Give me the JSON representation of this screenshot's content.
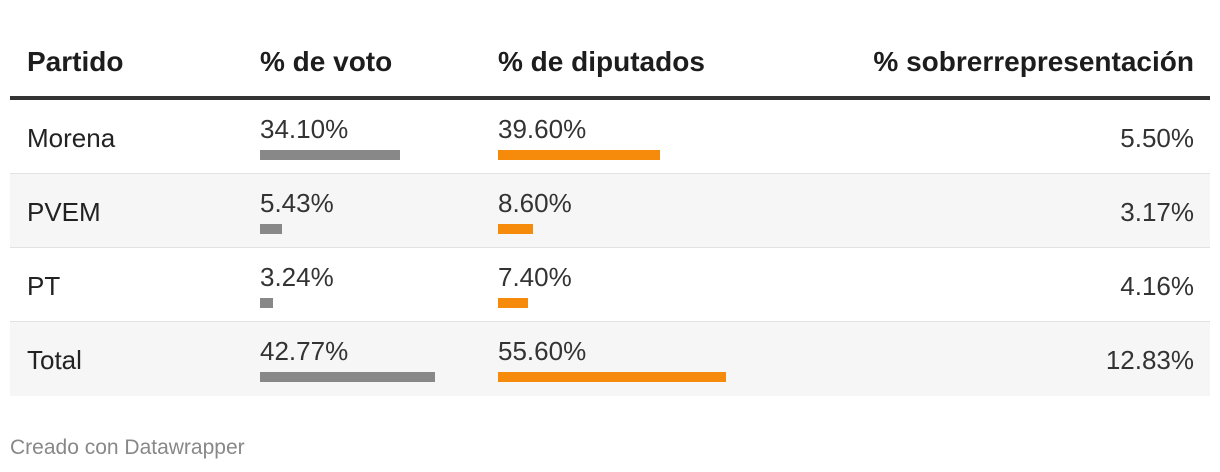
{
  "chart_data": {
    "type": "table",
    "columns": [
      "Partido",
      "% de voto",
      "% de diputados",
      "% sobrerrepresentación"
    ],
    "rows": [
      {
        "partido": "Morena",
        "voto": 34.1,
        "voto_label": "34.10%",
        "diputados": 39.6,
        "diputados_label": "39.60%",
        "sobre": 5.5,
        "sobre_label": "5.50%"
      },
      {
        "partido": "PVEM",
        "voto": 5.43,
        "voto_label": "5.43%",
        "diputados": 8.6,
        "diputados_label": "8.60%",
        "sobre": 3.17,
        "sobre_label": "3.17%"
      },
      {
        "partido": "PT",
        "voto": 3.24,
        "voto_label": "3.24%",
        "diputados": 7.4,
        "diputados_label": "7.40%",
        "sobre": 4.16,
        "sobre_label": "4.16%"
      },
      {
        "partido": "Total",
        "voto": 42.77,
        "voto_label": "42.77%",
        "diputados": 55.6,
        "diputados_label": "55.60%",
        "sobre": 12.83,
        "sobre_label": "12.83%"
      }
    ],
    "bar_colors": {
      "voto": "#888888",
      "diputados": "#f58a0b"
    },
    "bar_scale_max": 100
  },
  "footer": "Creado con Datawrapper"
}
